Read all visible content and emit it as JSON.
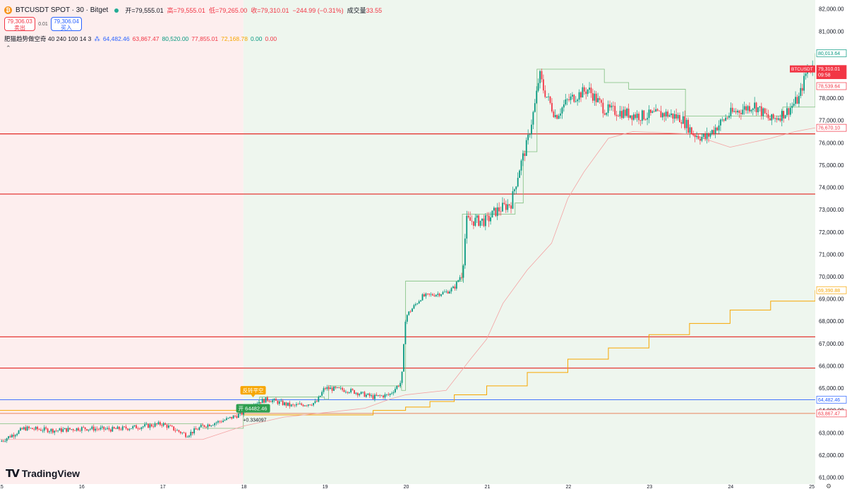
{
  "header": {
    "symbol": "BTCUSDT SPOT · 30 · Bitget",
    "coin_icon": "bitcoin-icon",
    "ohlc": {
      "open": "开=79,555.01",
      "high": "高=79,555.01",
      "low": "低=79,265.00",
      "close": "收=79,310.01",
      "change": "−244.99 (−0.31%)",
      "volume_label": "成交量",
      "volume": "33.55"
    }
  },
  "trade": {
    "sell_price": "79,306.03",
    "sell_label": "卖出",
    "spread": "0.01",
    "buy_price": "79,306.04",
    "buy_label": "买入"
  },
  "indicator": {
    "name": "肥猫趋势做空奇 40 240 100 14 3",
    "values": [
      "64,482.46",
      "63,867.47",
      "80,520.00",
      "77,855.01",
      "72,168.78",
      "0.00",
      "0.00"
    ],
    "colors": [
      "#2962ff",
      "#f23645",
      "#089981",
      "#f23645",
      "#f7a600",
      "#089981",
      "#f23645"
    ]
  },
  "branding": "TradingView",
  "colors": {
    "up": "#089981",
    "down": "#f23645",
    "bg_bull": "#eef6ee",
    "bg_bear": "#fdeeee",
    "hline": "#e53935",
    "ma_orange": "#f7a600",
    "blue_line": "#2962ff"
  },
  "chart_data": {
    "type": "candlestick",
    "ylim": [
      60700,
      82400
    ],
    "xlim": [
      15.0,
      25.05
    ],
    "y_ticks": [
      "82,000.00",
      "81,000.00",
      "80,000.00",
      "79,000.00",
      "78,000.00",
      "77,000.00",
      "76,000.00",
      "75,000.00",
      "74,000.00",
      "73,000.00",
      "72,000.00",
      "71,000.00",
      "70,000.00",
      "69,000.00",
      "68,000.00",
      "67,000.00",
      "66,000.00",
      "65,000.00",
      "64,000.00",
      "63,000.00",
      "62,000.00",
      "61,000.00"
    ],
    "x_ticks": [
      "15",
      "16",
      "17",
      "18",
      "19",
      "20",
      "21",
      "22",
      "23",
      "24",
      "25"
    ],
    "x_tick_values": [
      15,
      16,
      17,
      18,
      19,
      20,
      21,
      22,
      23,
      24,
      25
    ],
    "background_split_x": 18.0,
    "price_path": [
      [
        15.0,
        62600
      ],
      [
        15.3,
        63200
      ],
      [
        15.7,
        63100
      ],
      [
        16.0,
        63200
      ],
      [
        16.4,
        63150
      ],
      [
        16.8,
        63300
      ],
      [
        17.0,
        63400
      ],
      [
        17.3,
        62900
      ],
      [
        17.5,
        63300
      ],
      [
        17.8,
        63600
      ],
      [
        18.0,
        63900
      ],
      [
        18.1,
        64300
      ],
      [
        18.3,
        64500
      ],
      [
        18.6,
        64200
      ],
      [
        18.9,
        64350
      ],
      [
        19.0,
        65000
      ],
      [
        19.3,
        64900
      ],
      [
        19.6,
        64600
      ],
      [
        19.8,
        64700
      ],
      [
        19.95,
        65300
      ],
      [
        20.0,
        68200
      ],
      [
        20.2,
        69100
      ],
      [
        20.5,
        69300
      ],
      [
        20.6,
        69500
      ],
      [
        20.7,
        70200
      ],
      [
        20.75,
        72500
      ],
      [
        21.0,
        72500
      ],
      [
        21.1,
        72900
      ],
      [
        21.3,
        73300
      ],
      [
        21.4,
        74800
      ],
      [
        21.5,
        76000
      ],
      [
        21.6,
        77800
      ],
      [
        21.65,
        79100
      ],
      [
        21.7,
        78400
      ],
      [
        21.85,
        77200
      ],
      [
        22.0,
        77900
      ],
      [
        22.25,
        78400
      ],
      [
        22.45,
        77500
      ],
      [
        22.6,
        77400
      ],
      [
        22.9,
        77200
      ],
      [
        23.2,
        77300
      ],
      [
        23.4,
        77100
      ],
      [
        23.55,
        76400
      ],
      [
        23.7,
        76200
      ],
      [
        23.8,
        76600
      ],
      [
        24.0,
        77300
      ],
      [
        24.3,
        77700
      ],
      [
        24.5,
        77000
      ],
      [
        24.7,
        77400
      ],
      [
        24.85,
        78000
      ],
      [
        24.95,
        79300
      ],
      [
        25.02,
        79400
      ]
    ],
    "horizontal_lines": [
      76400,
      73700,
      67300,
      65900
    ],
    "blue_line": 64482.46,
    "orange_level_line": 63867.47,
    "stepped_line_orange": [
      [
        15.0,
        64000
      ],
      [
        18.0,
        63800
      ],
      [
        19.6,
        64000
      ],
      [
        20.0,
        64150
      ],
      [
        20.3,
        64400
      ],
      [
        20.6,
        64700
      ],
      [
        21.0,
        65100
      ],
      [
        21.5,
        65700
      ],
      [
        22.0,
        66300
      ],
      [
        22.5,
        66800
      ],
      [
        23.0,
        67400
      ],
      [
        23.5,
        67900
      ],
      [
        24.0,
        68500
      ],
      [
        24.5,
        68900
      ],
      [
        25.05,
        69390
      ]
    ],
    "trail_stop_green": [
      [
        15.0,
        63400
      ],
      [
        17.5,
        63200
      ],
      [
        18.0,
        64000
      ],
      [
        18.2,
        64600
      ],
      [
        19.0,
        64500
      ],
      [
        19.05,
        65100
      ],
      [
        19.7,
        65100
      ],
      [
        19.95,
        64900
      ],
      [
        20.0,
        69800
      ],
      [
        20.6,
        69800
      ],
      [
        20.7,
        72800
      ],
      [
        21.0,
        72800
      ],
      [
        21.35,
        73300
      ],
      [
        21.45,
        75600
      ],
      [
        21.6,
        75600
      ],
      [
        21.62,
        79300
      ],
      [
        22.4,
        79300
      ],
      [
        22.45,
        78700
      ],
      [
        22.7,
        78700
      ],
      [
        22.75,
        78400
      ],
      [
        23.35,
        78400
      ],
      [
        23.45,
        77200
      ],
      [
        24.6,
        77200
      ],
      [
        24.65,
        77600
      ],
      [
        24.9,
        77600
      ],
      [
        25.05,
        80013.64
      ]
    ],
    "trail_stop_red": [
      [
        15.0,
        62700
      ],
      [
        17.5,
        62700
      ],
      [
        18.0,
        63300
      ],
      [
        18.5,
        63700
      ],
      [
        19.5,
        64100
      ],
      [
        19.8,
        64500
      ],
      [
        20.0,
        64700
      ],
      [
        20.5,
        64900
      ],
      [
        20.8,
        66300
      ],
      [
        21.0,
        67200
      ],
      [
        21.2,
        68800
      ],
      [
        21.5,
        70300
      ],
      [
        21.8,
        71500
      ],
      [
        22.0,
        73500
      ],
      [
        22.2,
        74700
      ],
      [
        22.5,
        76200
      ],
      [
        22.8,
        76500
      ],
      [
        23.5,
        76400
      ],
      [
        24.0,
        75800
      ],
      [
        24.5,
        76200
      ],
      [
        24.8,
        76500
      ],
      [
        25.05,
        76670.1
      ]
    ],
    "price_labels": [
      {
        "text": "80,013.64",
        "value": 80013.64,
        "style": "outline-green"
      },
      {
        "text": "79,310.01",
        "value": 79310.01,
        "style": "solid-red",
        "sub": "09:58",
        "name": "BTCUSDT"
      },
      {
        "text": "78,539.64",
        "value": 78539.64,
        "style": "outline-red"
      },
      {
        "text": "76,670.10",
        "value": 76670.1,
        "style": "outline-red"
      },
      {
        "text": "69,390.88",
        "value": 69390.88,
        "style": "outline-orange"
      },
      {
        "text": "64,482.46",
        "value": 64482.46,
        "style": "outline-blue"
      },
      {
        "text": "63,867.47",
        "value": 63867.47,
        "style": "outline-red"
      }
    ],
    "annotations": [
      {
        "text": "反转平空",
        "x": 18.12,
        "y": 64650,
        "style": "orange-label"
      },
      {
        "text": "开 64482.46",
        "x": 18.12,
        "y": 64000,
        "style": "green-label"
      },
      {
        "text": "+0.334097",
        "x": 18.1,
        "y": 63500,
        "style": "plain"
      }
    ]
  }
}
